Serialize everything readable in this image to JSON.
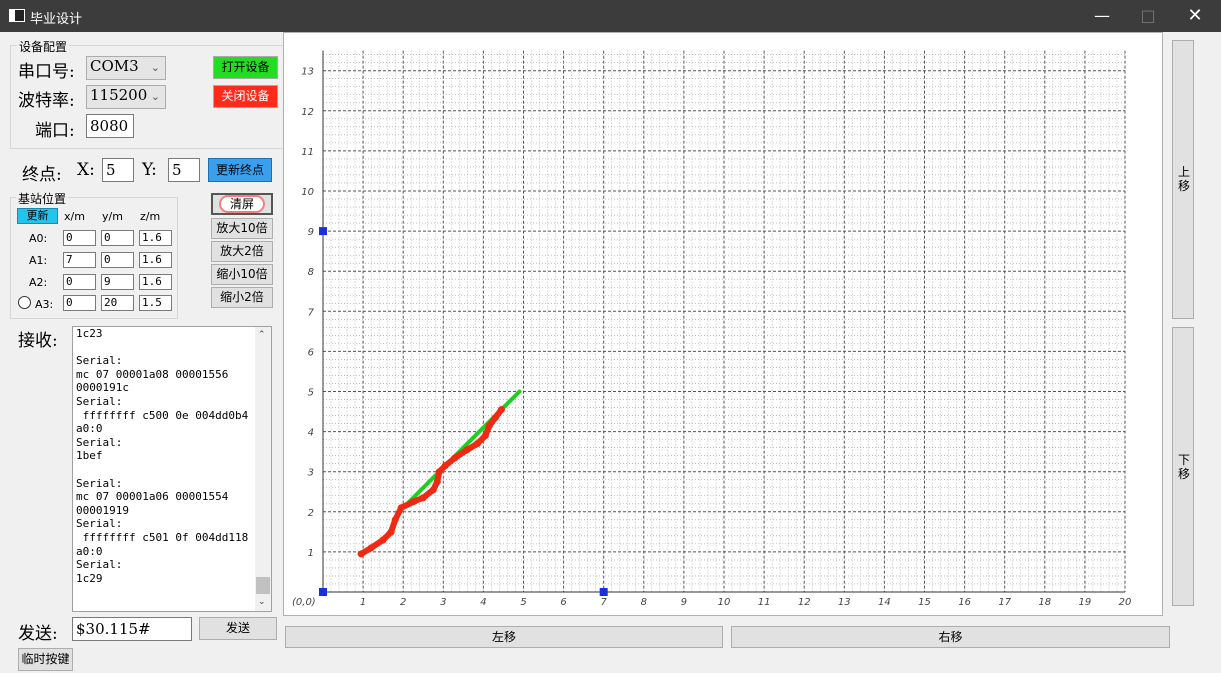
{
  "window": {
    "title": "毕业设计"
  },
  "device_config": {
    "group_title": "设备配置",
    "serial_label": "串口号:",
    "serial_value": "COM3",
    "baud_label": "波特率:",
    "baud_value": "115200",
    "port_label": "端口:",
    "port_value": "8080",
    "open_button": "打开设备",
    "close_button": "关闭设备",
    "open_color": "#22dd22",
    "close_color": "#ff2a1a"
  },
  "endpoint": {
    "label": "终点:",
    "x_label": "X:",
    "x_value": "5",
    "y_label": "Y:",
    "y_value": "5",
    "update_button": "更新终点"
  },
  "base_station": {
    "group_title": "基站位置",
    "update_button": "更新",
    "headers": [
      "x/m",
      "y/m",
      "z/m"
    ],
    "rows": [
      {
        "name": "A0:",
        "x": "0",
        "y": "0",
        "z": "1.6"
      },
      {
        "name": "A1:",
        "x": "7",
        "y": "0",
        "z": "1.6"
      },
      {
        "name": "A2:",
        "x": "0",
        "y": "9",
        "z": "1.6"
      },
      {
        "name": "A3:",
        "x": "0",
        "y": "20",
        "z": "1.5"
      }
    ]
  },
  "view_buttons": {
    "clear": "清屏",
    "zoom_in_10": "放大10倍",
    "zoom_in_2": "放大2倍",
    "zoom_out_10": "缩小10倍",
    "zoom_out_2": "缩小2倍"
  },
  "receive": {
    "label": "接收:",
    "lines": [
      "1c23",
      "",
      "Serial:",
      "mc 07 00001a08 00001556",
      "0000191c",
      "Serial:",
      " ffffffff c500 0e 004dd0b4",
      "a0:0",
      "Serial:",
      "1bef",
      "",
      "Serial:",
      "mc 07 00001a06 00001554",
      "00001919",
      "Serial:",
      " ffffffff c501 0f 004dd118",
      "a0:0",
      "Serial:",
      "1c29"
    ]
  },
  "send": {
    "label": "发送:",
    "value": "$30.115#",
    "button": "发送"
  },
  "temp_button": "临时按键",
  "nav": {
    "up": "上移",
    "down": "下移",
    "left": "左移",
    "right": "右移"
  },
  "chart_data": {
    "type": "scatter",
    "x_ticks": [
      "1",
      "2",
      "3",
      "4",
      "5",
      "6",
      "7",
      "8",
      "9",
      "10",
      "11",
      "12",
      "13",
      "14",
      "15",
      "16",
      "17",
      "18",
      "19",
      "20"
    ],
    "y_ticks": [
      "1",
      "2",
      "3",
      "4",
      "5",
      "6",
      "7",
      "8",
      "9",
      "10",
      "11",
      "12",
      "13"
    ],
    "origin_label": "(0,0)",
    "xlim": [
      0,
      20
    ],
    "ylim": [
      0,
      13.5
    ],
    "grid": true,
    "anchors": [
      {
        "x": 0,
        "y": 0
      },
      {
        "x": 7,
        "y": 0
      },
      {
        "x": 0,
        "y": 9
      }
    ],
    "anchor_color": "#1a2fe0",
    "planned_path": {
      "color": "#22cc22",
      "points": [
        [
          1.9,
          2.0
        ],
        [
          2.7,
          2.8
        ],
        [
          3.9,
          4.0
        ],
        [
          4.9,
          5.0
        ]
      ]
    },
    "measured_path": {
      "color": "#ee2a14",
      "points": [
        [
          0.95,
          0.95
        ],
        [
          1.2,
          1.1
        ],
        [
          1.5,
          1.3
        ],
        [
          1.7,
          1.5
        ],
        [
          1.8,
          1.8
        ],
        [
          1.95,
          2.1
        ],
        [
          2.25,
          2.25
        ],
        [
          2.5,
          2.35
        ],
        [
          2.75,
          2.55
        ],
        [
          2.85,
          2.75
        ],
        [
          2.9,
          3.0
        ],
        [
          3.05,
          3.15
        ],
        [
          3.3,
          3.35
        ],
        [
          3.6,
          3.55
        ],
        [
          3.85,
          3.7
        ],
        [
          4.05,
          3.9
        ],
        [
          4.15,
          4.15
        ],
        [
          4.3,
          4.35
        ],
        [
          4.45,
          4.55
        ]
      ]
    }
  }
}
